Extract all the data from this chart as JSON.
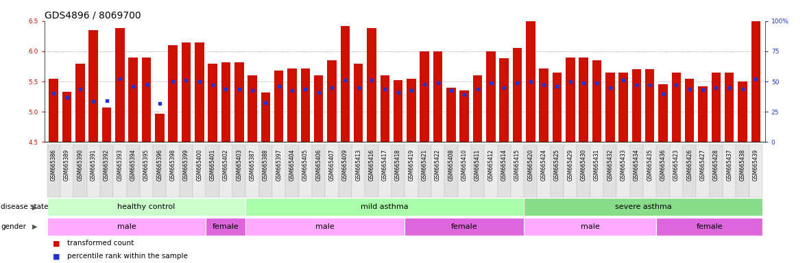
{
  "title": "GDS4896 / 8069700",
  "samples": [
    "GSM665386",
    "GSM665389",
    "GSM665390",
    "GSM665391",
    "GSM665392",
    "GSM665393",
    "GSM665394",
    "GSM665395",
    "GSM665396",
    "GSM665398",
    "GSM665399",
    "GSM665400",
    "GSM665401",
    "GSM665402",
    "GSM665403",
    "GSM665387",
    "GSM665388",
    "GSM665397",
    "GSM665404",
    "GSM665405",
    "GSM665406",
    "GSM665407",
    "GSM665409",
    "GSM665413",
    "GSM665416",
    "GSM665417",
    "GSM665418",
    "GSM665419",
    "GSM665421",
    "GSM665422",
    "GSM665408",
    "GSM665410",
    "GSM665411",
    "GSM665412",
    "GSM665414",
    "GSM665415",
    "GSM665420",
    "GSM665424",
    "GSM665425",
    "GSM665429",
    "GSM665430",
    "GSM665431",
    "GSM665432",
    "GSM665433",
    "GSM665434",
    "GSM665435",
    "GSM665436",
    "GSM665423",
    "GSM665426",
    "GSM665427",
    "GSM665428",
    "GSM665437",
    "GSM665438",
    "GSM665439"
  ],
  "bar_values": [
    5.55,
    5.33,
    5.8,
    6.35,
    5.07,
    6.38,
    5.9,
    5.9,
    4.97,
    6.1,
    6.15,
    6.15,
    5.8,
    5.82,
    5.82,
    5.6,
    5.32,
    5.68,
    5.72,
    5.72,
    5.6,
    5.85,
    6.42,
    5.8,
    6.38,
    5.6,
    5.52,
    5.55,
    6.0,
    6.0,
    5.4,
    5.35,
    5.6,
    6.0,
    5.88,
    6.05,
    6.5,
    5.72,
    5.65,
    5.9,
    5.9,
    5.85,
    5.65,
    5.65,
    5.7,
    5.7,
    5.45,
    5.65,
    5.55,
    5.42,
    5.65,
    5.65,
    5.5,
    6.68
  ],
  "percentile_values": [
    5.31,
    5.24,
    5.38,
    5.17,
    5.18,
    5.55,
    5.42,
    5.45,
    5.14,
    5.5,
    5.52,
    5.5,
    5.44,
    5.38,
    5.38,
    5.35,
    5.15,
    5.42,
    5.35,
    5.38,
    5.32,
    5.4,
    5.52,
    5.4,
    5.52,
    5.38,
    5.32,
    5.35,
    5.45,
    5.48,
    5.35,
    5.28,
    5.38,
    5.48,
    5.4,
    5.48,
    5.5,
    5.44,
    5.42,
    5.5,
    5.48,
    5.48,
    5.4,
    5.52,
    5.44,
    5.44,
    5.3,
    5.44,
    5.38,
    5.36,
    5.4,
    5.4,
    5.38,
    5.55
  ],
  "ylim": [
    4.5,
    6.5
  ],
  "yticks": [
    4.5,
    5.0,
    5.5,
    6.0,
    6.5
  ],
  "right_yticks": [
    0,
    25,
    50,
    75,
    100
  ],
  "right_yticklabels": [
    "0",
    "25",
    "50",
    "75",
    "100%"
  ],
  "bar_color": "#cc1100",
  "dot_color": "#2233cc",
  "bar_width": 0.7,
  "disease_groups": [
    {
      "label": "healthy control",
      "start": 0,
      "end": 15
    },
    {
      "label": "mild asthma",
      "start": 15,
      "end": 36
    },
    {
      "label": "severe asthma",
      "start": 36,
      "end": 54
    }
  ],
  "disease_colors": [
    "#ccffcc",
    "#aaffaa",
    "#88dd88"
  ],
  "gender_groups": [
    {
      "label": "male",
      "start": 0,
      "end": 12
    },
    {
      "label": "female",
      "start": 12,
      "end": 15
    },
    {
      "label": "male",
      "start": 15,
      "end": 27
    },
    {
      "label": "female",
      "start": 27,
      "end": 36
    },
    {
      "label": "male",
      "start": 36,
      "end": 46
    },
    {
      "label": "female",
      "start": 46,
      "end": 54
    }
  ],
  "gender_colors": {
    "male": "#ffaaff",
    "female": "#dd66dd"
  },
  "grid_yticks": [
    5.0,
    5.5,
    6.0
  ],
  "grid_color": "#888888",
  "background_color": "#ffffff",
  "title_fontsize": 10,
  "tick_fontsize": 6.5,
  "xtick_fontsize": 5.5,
  "label_fontsize": 8
}
